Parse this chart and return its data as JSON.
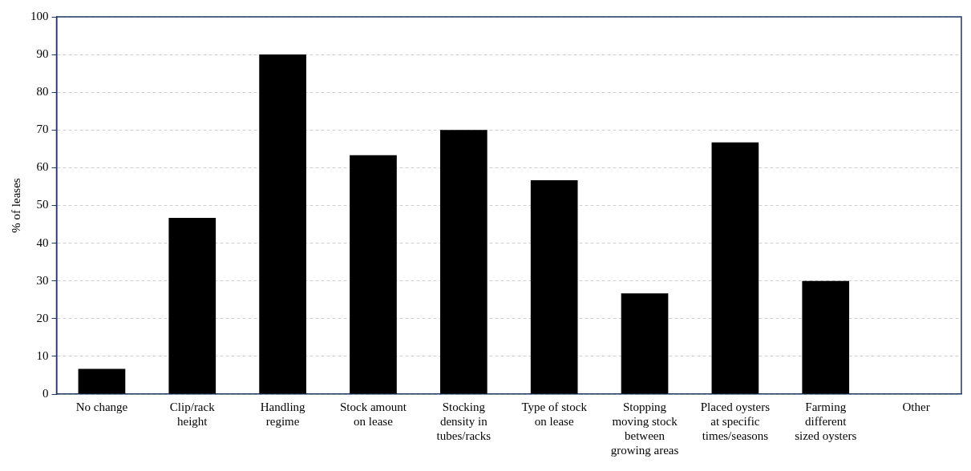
{
  "chart_data": {
    "type": "bar",
    "ylabel": "% of leases",
    "categories": [
      "No change",
      "Clip/rack height",
      "Handling regime",
      "Stock amount on lease",
      "Stocking density in tubes/racks",
      "Type of stock on lease",
      "Stopping moving stock between growing areas",
      "Placed oysters at specific times/seasons",
      "Farming different sized oysters",
      "Other"
    ],
    "values": [
      6.7,
      46.7,
      90,
      63.3,
      70,
      56.7,
      26.7,
      66.7,
      30,
      0
    ],
    "color": "#000000",
    "ylim": [
      0,
      100
    ],
    "yticks": [
      0,
      10,
      20,
      30,
      40,
      50,
      60,
      70,
      80,
      90,
      100
    ],
    "grid": "y",
    "legend": false
  }
}
